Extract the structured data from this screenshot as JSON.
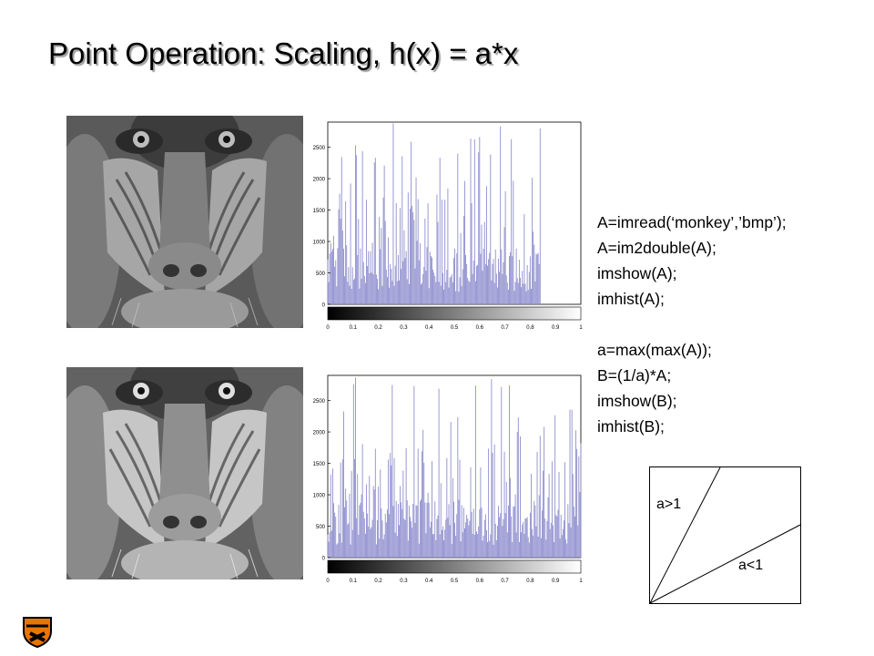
{
  "slide": {
    "title": "Point Operation: Scaling, h(x) = a*x"
  },
  "code": {
    "block1": [
      "A=imread(‘monkey’,’bmp’);",
      "A=im2double(A);",
      "imshow(A);",
      "imhist(A);"
    ],
    "block2": [
      "a=max(max(A));",
      "B=(1/a)*A;",
      "imshow(B);",
      "imhist(B);"
    ]
  },
  "diagram": {
    "steep_label": "a>1",
    "shallow_label": "a<1"
  },
  "colors": {
    "bar": "#8f8fcf",
    "title_shadow": "#a0a0a0",
    "logo_orange": "#e77500"
  },
  "chart_data": [
    {
      "type": "bar",
      "title": "",
      "x_ticks": [
        "0",
        "0.1",
        "0.2",
        "0.3",
        "0.4",
        "0.5",
        "0.6",
        "0.7",
        "0.8",
        "0.9",
        "1"
      ],
      "y_ticks": [
        "0",
        "500",
        "1000",
        "1500",
        "2000",
        "2500"
      ],
      "xlim": [
        0,
        1
      ],
      "ylim": [
        0,
        2900
      ],
      "data_max_x": 0.84,
      "values": []
    },
    {
      "type": "bar",
      "title": "",
      "x_ticks": [
        "0",
        "0.1",
        "0.2",
        "0.3",
        "0.4",
        "0.5",
        "0.6",
        "0.7",
        "0.8",
        "0.9",
        "1"
      ],
      "y_ticks": [
        "0",
        "500",
        "1000",
        "1500",
        "2000",
        "2500"
      ],
      "xlim": [
        0,
        1
      ],
      "ylim": [
        0,
        2900
      ],
      "data_max_x": 1.0,
      "values": []
    }
  ]
}
